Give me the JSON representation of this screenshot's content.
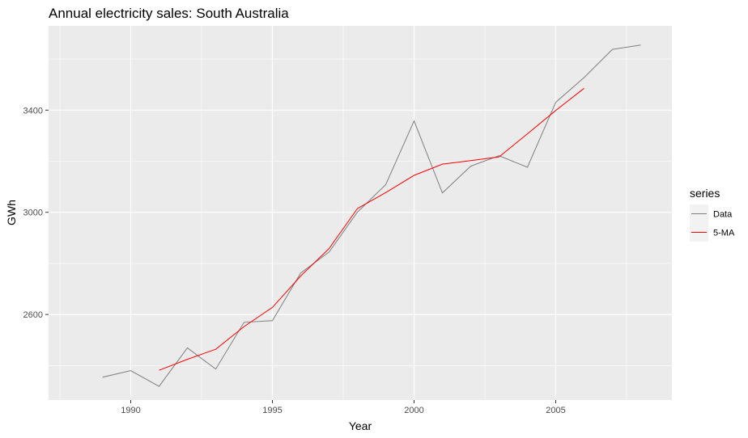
{
  "chart_data": {
    "type": "line",
    "title": "Annual electricity sales: South Australia",
    "xlabel": "Year",
    "ylabel": "GWh",
    "xlim": [
      1987.1,
      2009.1
    ],
    "ylim": [
      2265,
      3730
    ],
    "x_ticks": [
      1990,
      1995,
      2000,
      2005
    ],
    "y_ticks": [
      2600,
      3000,
      3400
    ],
    "grid": true,
    "legend_title": "series",
    "legend_position": "right",
    "colors": {
      "panel": "#ebebeb",
      "grid": "#ffffff",
      "data": "#7f7f7f",
      "ma": "#ff0000"
    },
    "series": [
      {
        "name": "Data",
        "color": "#7f7f7f",
        "x": [
          1989,
          1990,
          1991,
          1992,
          1993,
          1994,
          1995,
          1996,
          1997,
          1998,
          1999,
          2000,
          2001,
          2002,
          2003,
          2004,
          2005,
          2006,
          2007,
          2008
        ],
        "y": [
          2354.34,
          2379.71,
          2318.52,
          2468.99,
          2386.09,
          2569.47,
          2575.72,
          2762.72,
          2844.5,
          3000.7,
          3108.1,
          3357.5,
          3075.7,
          3180.6,
          3221.6,
          3176.2,
          3430.6,
          3527.48,
          3637.89,
          3655
        ]
      },
      {
        "name": "5-MA",
        "color": "#ff0000",
        "x": [
          1991,
          1992,
          1993,
          1994,
          1995,
          1996,
          1997,
          1998,
          1999,
          2000,
          2001,
          2002,
          2003,
          2004,
          2005,
          2006
        ],
        "y": [
          2381.53,
          2424.56,
          2463.76,
          2552.6,
          2627.7,
          2750.62,
          2858.35,
          3014.7,
          3077.3,
          3144.52,
          3188.7,
          3202.32,
          3216.94,
          3307.18,
          3398.75,
          3485.43
        ]
      }
    ]
  }
}
